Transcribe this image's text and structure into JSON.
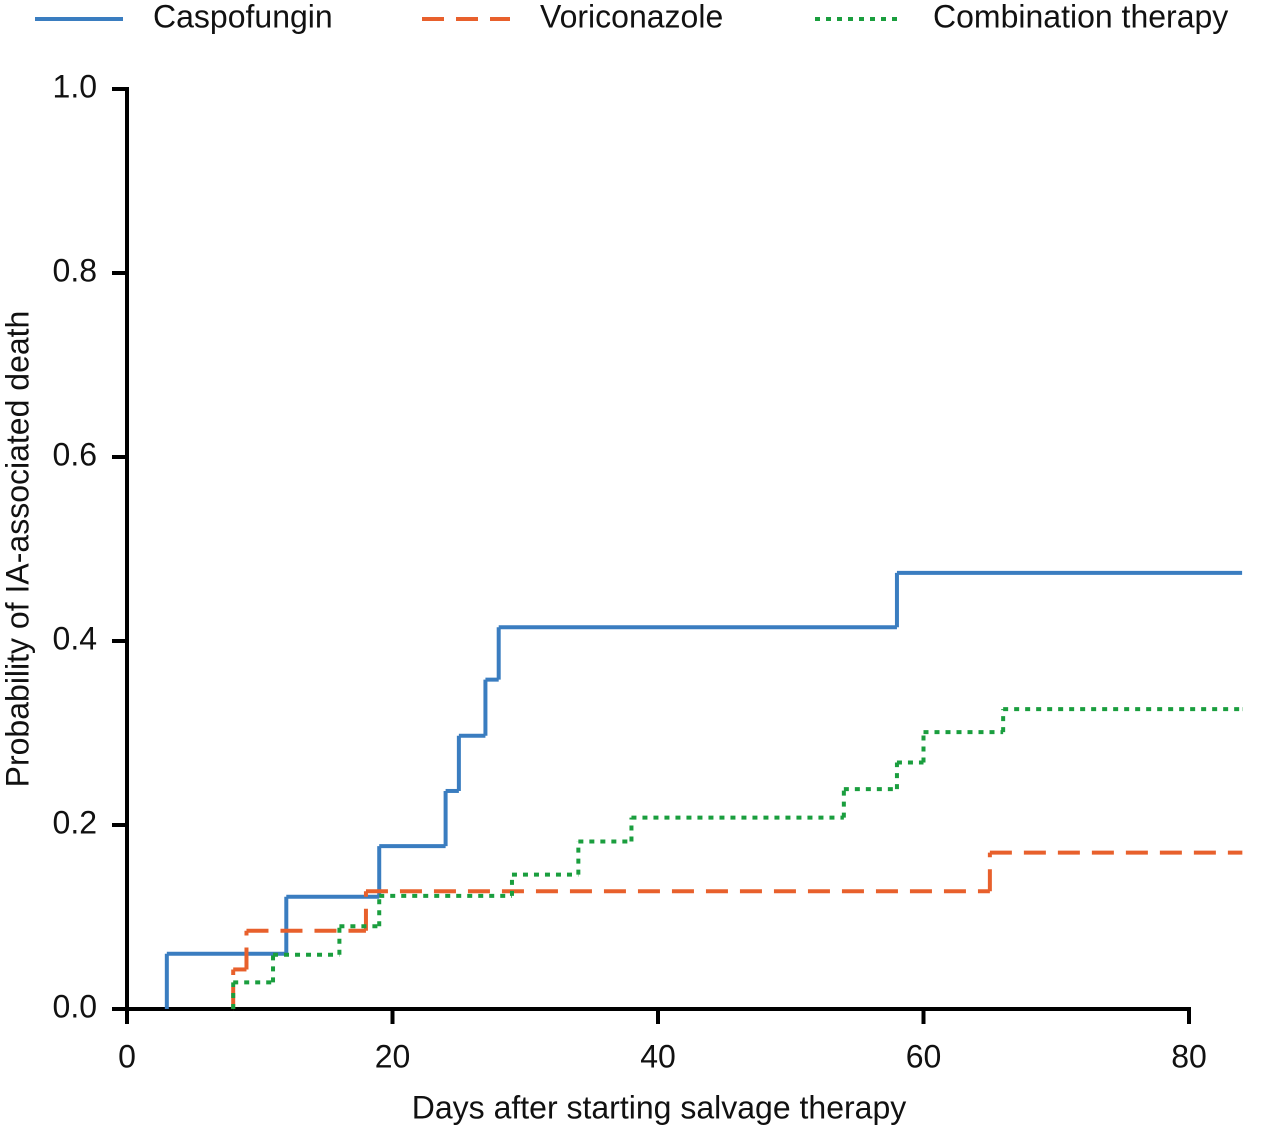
{
  "chart_data": {
    "type": "step",
    "x_label": "Days after starting salvage therapy",
    "y_label": "Probability of IA-associated death",
    "xlim": [
      0,
      80
    ],
    "xticks": [
      0,
      20,
      40,
      60,
      80
    ],
    "ylim": [
      0,
      1
    ],
    "yticks": [
      {
        "value": 0,
        "label": "0.0"
      },
      {
        "value": 0.2,
        "label": "0.2"
      },
      {
        "value": 0.4,
        "label": "0.4"
      },
      {
        "value": 0.6,
        "label": "0.6"
      },
      {
        "value": 0.8,
        "label": "0.8"
      },
      {
        "value": 1,
        "label": "1.0"
      }
    ],
    "legend": "top",
    "series": [
      {
        "name": "Caspofungin",
        "color": "#3a7dc0",
        "style": "solid",
        "x": [
          3,
          3,
          12,
          19,
          24,
          25,
          27,
          28,
          58,
          84
        ],
        "values": [
          0,
          0.06,
          0.122,
          0.177,
          0.237,
          0.297,
          0.358,
          0.415,
          0.474,
          0.474
        ]
      },
      {
        "name": "Voriconazole",
        "color": "#e8602c",
        "style": "dashed",
        "x": [
          8,
          8,
          9,
          18,
          65,
          84
        ],
        "values": [
          0,
          0.043,
          0.085,
          0.128,
          0.17,
          0.17
        ]
      },
      {
        "name": "Combination therapy",
        "color": "#1a9e3e",
        "style": "dotted",
        "x": [
          8,
          8,
          11,
          16,
          19,
          29,
          34,
          38,
          54,
          58,
          60,
          66,
          84
        ],
        "values": [
          0,
          0.029,
          0.059,
          0.09,
          0.123,
          0.146,
          0.182,
          0.208,
          0.239,
          0.268,
          0.301,
          0.326,
          0.326
        ]
      }
    ]
  }
}
